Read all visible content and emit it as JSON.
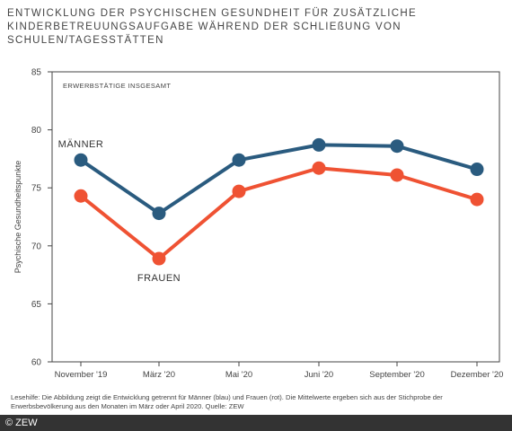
{
  "title": "ENTWICKLUNG DER PSYCHISCHEN GESUNDHEIT FÜR ZUSÄTZLICHE KINDERBETREUUNGSAUFGABE WÄHREND DER SCHLIEßUNG VON SCHULEN/TAGESSTÄTTEN",
  "note": "Lesehilfe: Die Abbildung zeigt die Entwicklung getrennt für Männer (blau) und Frauen (rot). Die Mittelwerte ergeben sich aus der Stichprobe der Erwerbsbevölkerung aus den Monaten im März oder April 2020. Quelle: ZEW",
  "copyright": "© ZEW",
  "colors": {
    "maenner": "#2a5b7f",
    "frauen": "#ef5233",
    "frame": "#444444"
  },
  "chart_data": {
    "type": "line",
    "subtitle": "ERWERBSTÄTIGE INSGESAMT",
    "xlabel": "",
    "ylabel": "Psychische Gesundheitspunkte",
    "ylim": [
      60,
      85
    ],
    "yticks": [
      60,
      65,
      70,
      75,
      80,
      85
    ],
    "categories": [
      "November '19",
      "März '20",
      "Mai '20",
      "Juni '20",
      "September '20",
      "Dezember '20"
    ],
    "grid": false,
    "series": [
      {
        "name": "MÄNNER",
        "color": "#2a5b7f",
        "values": [
          77.4,
          72.8,
          77.4,
          78.7,
          78.6,
          76.6
        ]
      },
      {
        "name": "FRAUEN",
        "color": "#ef5233",
        "values": [
          74.3,
          68.9,
          74.7,
          76.7,
          76.1,
          74.0
        ]
      }
    ]
  }
}
